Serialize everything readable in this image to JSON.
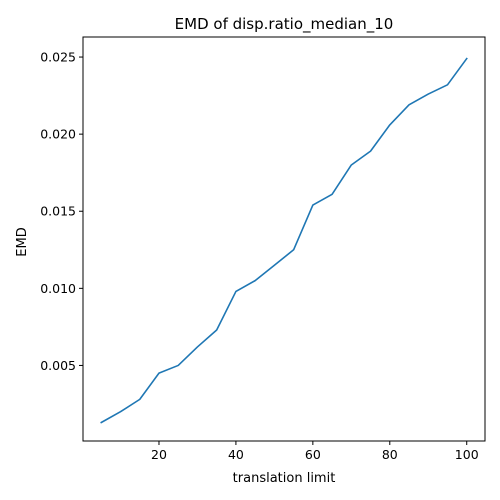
{
  "chart_data": {
    "type": "line",
    "title": "EMD of disp.ratio_median_10",
    "xlabel": "translation limit",
    "ylabel": "EMD",
    "xlim": [
      0.25,
      104.75
    ],
    "ylim": [
      0.0001,
      0.0263
    ],
    "xticks": [
      20,
      40,
      60,
      80,
      100
    ],
    "xtick_labels": [
      "20",
      "40",
      "60",
      "80",
      "100"
    ],
    "yticks": [
      0.005,
      0.01,
      0.015,
      0.02,
      0.025
    ],
    "ytick_labels": [
      "0.005",
      "0.010",
      "0.015",
      "0.020",
      "0.025"
    ],
    "grid": false,
    "series": [
      {
        "color": "#1f77b4",
        "x": [
          5,
          10,
          15,
          20,
          25,
          30,
          35,
          40,
          45,
          50,
          55,
          60,
          65,
          70,
          75,
          80,
          85,
          90,
          95,
          100
        ],
        "values": [
          0.0013,
          0.002,
          0.0028,
          0.0045,
          0.005,
          0.0062,
          0.0073,
          0.0098,
          0.0105,
          0.0115,
          0.0125,
          0.0154,
          0.0161,
          0.018,
          0.0189,
          0.0206,
          0.0219,
          0.0226,
          0.0232,
          0.0249
        ]
      }
    ]
  }
}
